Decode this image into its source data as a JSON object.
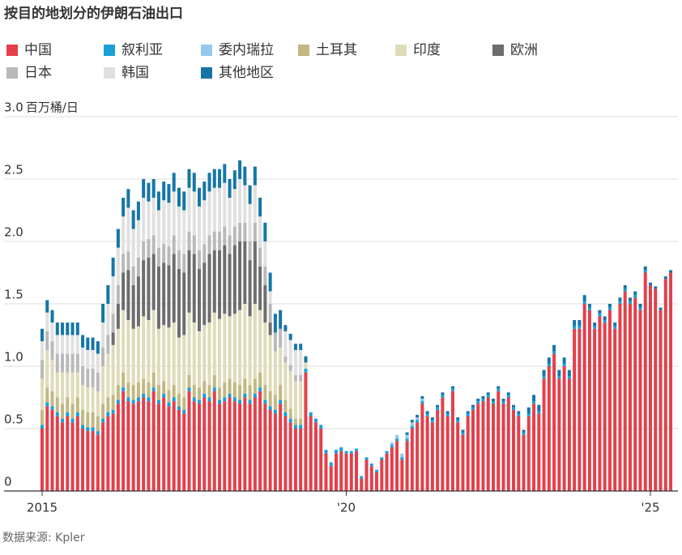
{
  "chart_data": {
    "type": "stacked-bar",
    "title": "按目的地划分的伊朗石油出口",
    "y_unit": "百万桶/日",
    "source": "数据来源: Kpler",
    "ylim": [
      0,
      3
    ],
    "yticks": [
      0,
      0.5,
      {
        "value": 1,
        "label": "1.0"
      },
      1.5,
      {
        "value": 2,
        "label": "2.0"
      },
      2.5,
      {
        "value": 3,
        "label": "3.0"
      }
    ],
    "grid": true,
    "categories": [
      "2015",
      null,
      null,
      null,
      null,
      null,
      null,
      null,
      null,
      null,
      null,
      null,
      null,
      null,
      null,
      null,
      null,
      null,
      null,
      null,
      null,
      null,
      null,
      null,
      null,
      null,
      null,
      null,
      null,
      null,
      null,
      null,
      null,
      null,
      null,
      null,
      null,
      null,
      null,
      null,
      null,
      null,
      null,
      null,
      null,
      null,
      null,
      null,
      null,
      null,
      null,
      null,
      null,
      null,
      null,
      null,
      null,
      null,
      null,
      null,
      "'20",
      null,
      null,
      null,
      null,
      null,
      null,
      null,
      null,
      null,
      null,
      null,
      null,
      null,
      null,
      null,
      null,
      null,
      null,
      null,
      null,
      null,
      null,
      null,
      null,
      null,
      null,
      null,
      null,
      null,
      null,
      null,
      null,
      null,
      null,
      null,
      null,
      null,
      null,
      null,
      null,
      null,
      null,
      null,
      null,
      null,
      null,
      null,
      null,
      null,
      null,
      null,
      null,
      null,
      null,
      null,
      null,
      null,
      null,
      null,
      "'25",
      null,
      null,
      null,
      null
    ],
    "series": [
      {
        "name": "中国",
        "color": "#e3404b",
        "values": [
          0.5,
          0.68,
          0.65,
          0.6,
          0.55,
          0.6,
          0.55,
          0.6,
          0.5,
          0.48,
          0.48,
          0.45,
          0.55,
          0.6,
          0.62,
          0.7,
          0.8,
          0.72,
          0.7,
          0.72,
          0.75,
          0.72,
          0.8,
          0.7,
          0.75,
          0.68,
          0.72,
          0.65,
          0.62,
          0.8,
          0.72,
          0.7,
          0.75,
          0.72,
          0.8,
          0.7,
          0.72,
          0.75,
          0.72,
          0.7,
          0.75,
          0.7,
          0.75,
          0.8,
          0.7,
          0.65,
          0.62,
          0.7,
          0.6,
          0.55,
          0.5,
          0.5,
          0.95,
          0.6,
          0.55,
          0.5,
          0.3,
          0.2,
          0.3,
          0.32,
          0.3,
          0.3,
          0.32,
          0.1,
          0.25,
          0.2,
          0.15,
          0.25,
          0.3,
          0.35,
          0.4,
          0.25,
          0.4,
          0.5,
          0.55,
          0.7,
          0.6,
          0.55,
          0.65,
          0.75,
          0.6,
          0.8,
          0.55,
          0.45,
          0.6,
          0.65,
          0.7,
          0.72,
          0.75,
          0.7,
          0.8,
          0.7,
          0.75,
          0.65,
          0.6,
          0.45,
          0.6,
          0.7,
          0.62,
          0.9,
          1.0,
          1.1,
          0.9,
          1.0,
          0.9,
          1.3,
          1.3,
          1.5,
          1.45,
          1.3,
          1.4,
          1.35,
          1.45,
          1.3,
          1.5,
          1.6,
          1.5,
          1.55,
          1.45,
          1.75,
          1.65,
          1.62,
          1.45,
          1.7,
          1.75
        ]
      },
      {
        "name": "叙利亚",
        "color": "#1a9fd8",
        "values": [
          0.03,
          0.03,
          0.03,
          0.03,
          0.03,
          0.03,
          0.03,
          0.03,
          0.03,
          0.03,
          0.03,
          0.03,
          0.03,
          0.03,
          0.03,
          0.03,
          0.03,
          0.03,
          0.03,
          0.03,
          0.03,
          0.03,
          0.03,
          0.03,
          0.03,
          0.03,
          0.03,
          0.03,
          0.03,
          0.03,
          0.03,
          0.03,
          0.03,
          0.03,
          0.03,
          0.03,
          0.03,
          0.03,
          0.03,
          0.03,
          0.03,
          0.03,
          0.03,
          0.03,
          0.03,
          0.03,
          0.03,
          0.03,
          0.03,
          0.03,
          0.03,
          0.03,
          0.03,
          0.03,
          0.03,
          0.03,
          0.03,
          0.03,
          0.03,
          0.03,
          0.02,
          0.02,
          0.02,
          0.02,
          0.02,
          0.02,
          0.02,
          0.02,
          0.02,
          0.02,
          0.02,
          0.02,
          0.02,
          0.02,
          0.02,
          0.02,
          0.02,
          0.02,
          0.02,
          0.02,
          0.02,
          0.02,
          0.02,
          0.02,
          0.02,
          0.02,
          0.02,
          0.02,
          0.02,
          0.02,
          0.02,
          0.02,
          0.02,
          0.02,
          0.02,
          0.02,
          0.02,
          0.02,
          0.02,
          0.02,
          0.02,
          0.02,
          0.02,
          0.02,
          0.02,
          0.02,
          0.02,
          0.02,
          0.02,
          0.02,
          0.02,
          0.02,
          0.02,
          0.02,
          0.02,
          0.02,
          0.02,
          0.02,
          0.02,
          0.02,
          0,
          0,
          0,
          0,
          0
        ]
      },
      {
        "name": "委内瑞拉",
        "color": "#94c8ec",
        "values": [
          0,
          0,
          0,
          0,
          0,
          0,
          0,
          0,
          0,
          0,
          0,
          0,
          0,
          0,
          0,
          0,
          0,
          0,
          0,
          0,
          0,
          0,
          0,
          0,
          0,
          0,
          0,
          0,
          0,
          0,
          0,
          0,
          0,
          0,
          0,
          0,
          0,
          0,
          0,
          0,
          0,
          0,
          0,
          0,
          0,
          0,
          0,
          0,
          0,
          0,
          0,
          0,
          0,
          0,
          0,
          0,
          0,
          0,
          0,
          0,
          0,
          0,
          0,
          0,
          0,
          0,
          0,
          0,
          0,
          0.02,
          0.03,
          0.03,
          0.03,
          0.03,
          0.02,
          0.02,
          0,
          0,
          0,
          0,
          0,
          0,
          0,
          0,
          0,
          0,
          0,
          0,
          0,
          0,
          0,
          0,
          0,
          0,
          0,
          0,
          0,
          0,
          0,
          0,
          0,
          0,
          0,
          0,
          0,
          0,
          0,
          0,
          0,
          0,
          0,
          0,
          0,
          0,
          0,
          0,
          0,
          0,
          0,
          0,
          0,
          0,
          0,
          0,
          0
        ]
      },
      {
        "name": "土耳其",
        "color": "#c2b882",
        "values": [
          0.12,
          0.12,
          0.12,
          0.12,
          0.12,
          0.12,
          0.12,
          0.12,
          0.12,
          0.12,
          0.12,
          0.12,
          0.12,
          0.12,
          0.12,
          0.12,
          0.12,
          0.12,
          0.12,
          0.12,
          0.12,
          0.12,
          0.12,
          0.12,
          0.1,
          0.1,
          0.1,
          0.1,
          0.1,
          0.1,
          0.1,
          0.1,
          0.1,
          0.1,
          0.1,
          0.1,
          0.12,
          0.12,
          0.12,
          0.12,
          0.12,
          0.12,
          0.12,
          0.12,
          0.12,
          0.12,
          0.12,
          0.12,
          0.1,
          0.08,
          0.05,
          0.05,
          0,
          0,
          0,
          0,
          0,
          0,
          0,
          0,
          0,
          0,
          0,
          0,
          0,
          0,
          0,
          0,
          0,
          0,
          0,
          0,
          0,
          0,
          0,
          0,
          0,
          0,
          0,
          0,
          0,
          0,
          0,
          0,
          0,
          0,
          0,
          0,
          0,
          0,
          0,
          0,
          0,
          0,
          0,
          0,
          0,
          0,
          0,
          0,
          0,
          0,
          0,
          0,
          0,
          0,
          0,
          0,
          0,
          0,
          0,
          0,
          0,
          0,
          0,
          0,
          0,
          0,
          0,
          0,
          0,
          0,
          0,
          0,
          0
        ]
      },
      {
        "name": "印度",
        "color": "#dedbb9",
        "values": [
          0.25,
          0.3,
          0.25,
          0.2,
          0.25,
          0.2,
          0.25,
          0.2,
          0.2,
          0.2,
          0.2,
          0.2,
          0.3,
          0.35,
          0.4,
          0.45,
          0.5,
          0.5,
          0.45,
          0.45,
          0.5,
          0.5,
          0.5,
          0.45,
          0.45,
          0.5,
          0.5,
          0.45,
          0.5,
          0.5,
          0.5,
          0.45,
          0.45,
          0.5,
          0.5,
          0.55,
          0.55,
          0.5,
          0.55,
          0.6,
          0.6,
          0.55,
          0.6,
          0.5,
          0.5,
          0.45,
          0.35,
          0.3,
          0.3,
          0.3,
          0.3,
          0.3,
          0.05,
          0,
          0,
          0,
          0,
          0,
          0,
          0,
          0,
          0,
          0,
          0,
          0,
          0,
          0,
          0,
          0,
          0,
          0,
          0,
          0,
          0,
          0,
          0,
          0,
          0,
          0,
          0,
          0,
          0,
          0,
          0,
          0,
          0,
          0,
          0,
          0,
          0,
          0,
          0,
          0,
          0,
          0,
          0,
          0,
          0,
          0,
          0,
          0,
          0,
          0,
          0,
          0,
          0,
          0,
          0,
          0,
          0,
          0,
          0,
          0,
          0,
          0,
          0,
          0,
          0,
          0,
          0,
          0,
          0,
          0,
          0,
          0
        ]
      },
      {
        "name": "欧洲",
        "color": "#6d6d6d",
        "values": [
          0,
          0,
          0,
          0,
          0,
          0,
          0,
          0,
          0,
          0,
          0,
          0,
          0,
          0,
          0.1,
          0.2,
          0.3,
          0.4,
          0.35,
          0.4,
          0.45,
          0.5,
          0.45,
          0.5,
          0.5,
          0.5,
          0.55,
          0.55,
          0.5,
          0.5,
          0.55,
          0.5,
          0.5,
          0.55,
          0.5,
          0.55,
          0.55,
          0.5,
          0.55,
          0.55,
          0.5,
          0.45,
          0.5,
          0.35,
          0.3,
          0.1,
          0,
          0,
          0,
          0,
          0,
          0,
          0,
          0,
          0,
          0,
          0,
          0,
          0,
          0,
          0,
          0,
          0,
          0,
          0,
          0,
          0,
          0,
          0,
          0,
          0,
          0,
          0,
          0,
          0,
          0,
          0,
          0,
          0,
          0,
          0,
          0,
          0,
          0,
          0,
          0,
          0,
          0,
          0,
          0,
          0,
          0,
          0,
          0,
          0,
          0,
          0,
          0,
          0,
          0,
          0,
          0,
          0,
          0,
          0,
          0,
          0,
          0,
          0,
          0,
          0,
          0,
          0,
          0,
          0,
          0,
          0,
          0,
          0,
          0,
          0,
          0,
          0,
          0,
          0
        ]
      },
      {
        "name": "日本",
        "color": "#b9b9b9",
        "values": [
          0.15,
          0.15,
          0.15,
          0.15,
          0.15,
          0.15,
          0.15,
          0.15,
          0.15,
          0.15,
          0.15,
          0.15,
          0.15,
          0.15,
          0.15,
          0.15,
          0.15,
          0.15,
          0.15,
          0.15,
          0.15,
          0.15,
          0.15,
          0.15,
          0.15,
          0.15,
          0.15,
          0.15,
          0.15,
          0.15,
          0.15,
          0.15,
          0.15,
          0.15,
          0.15,
          0.15,
          0.15,
          0.15,
          0.15,
          0.15,
          0.15,
          0.15,
          0.15,
          0.15,
          0.15,
          0.15,
          0.15,
          0.15,
          0.05,
          0.05,
          0.05,
          0.05,
          0,
          0,
          0,
          0,
          0,
          0,
          0,
          0,
          0,
          0,
          0,
          0,
          0,
          0,
          0,
          0,
          0,
          0,
          0,
          0,
          0,
          0,
          0,
          0,
          0,
          0,
          0,
          0,
          0,
          0,
          0,
          0,
          0,
          0,
          0,
          0,
          0,
          0,
          0,
          0,
          0,
          0,
          0,
          0,
          0,
          0,
          0,
          0,
          0,
          0,
          0,
          0,
          0,
          0,
          0,
          0,
          0,
          0,
          0,
          0,
          0,
          0,
          0,
          0,
          0,
          0,
          0,
          0,
          0,
          0,
          0,
          0,
          0
        ]
      },
      {
        "name": "韩国",
        "color": "#e0e0e0",
        "values": [
          0.15,
          0.15,
          0.15,
          0.15,
          0.15,
          0.15,
          0.15,
          0.15,
          0.15,
          0.15,
          0.15,
          0.15,
          0.2,
          0.25,
          0.3,
          0.3,
          0.3,
          0.35,
          0.3,
          0.3,
          0.35,
          0.3,
          0.3,
          0.3,
          0.35,
          0.35,
          0.35,
          0.35,
          0.35,
          0.35,
          0.35,
          0.35,
          0.35,
          0.35,
          0.35,
          0.35,
          0.35,
          0.3,
          0.3,
          0.35,
          0.3,
          0.3,
          0.3,
          0.25,
          0.2,
          0.1,
          0,
          0,
          0.2,
          0.2,
          0.2,
          0.2,
          0,
          0,
          0,
          0,
          0,
          0,
          0,
          0,
          0,
          0,
          0,
          0,
          0,
          0,
          0,
          0,
          0,
          0,
          0,
          0,
          0,
          0,
          0,
          0,
          0,
          0,
          0,
          0,
          0,
          0,
          0,
          0,
          0,
          0,
          0,
          0,
          0,
          0,
          0,
          0,
          0,
          0,
          0,
          0,
          0,
          0,
          0,
          0,
          0,
          0,
          0,
          0,
          0,
          0,
          0,
          0,
          0,
          0,
          0,
          0,
          0,
          0,
          0,
          0,
          0,
          0,
          0,
          0,
          0,
          0,
          0,
          0,
          0
        ]
      },
      {
        "name": "其他地区",
        "color": "#1576a6",
        "values": [
          0.1,
          0.1,
          0.1,
          0.1,
          0.1,
          0.1,
          0.1,
          0.1,
          0.1,
          0.1,
          0.1,
          0.1,
          0.15,
          0.15,
          0.15,
          0.15,
          0.15,
          0.15,
          0.15,
          0.15,
          0.15,
          0.15,
          0.15,
          0.15,
          0.15,
          0.15,
          0.15,
          0.15,
          0.15,
          0.15,
          0.15,
          0.15,
          0.15,
          0.15,
          0.15,
          0.15,
          0.15,
          0.15,
          0.15,
          0.15,
          0.15,
          0.15,
          0.15,
          0.15,
          0.15,
          0.15,
          0.15,
          0.15,
          0.05,
          0.05,
          0.05,
          0.05,
          0.05,
          0,
          0,
          0,
          0,
          0,
          0,
          0,
          0,
          0,
          0,
          0,
          0,
          0,
          0,
          0,
          0,
          0,
          0,
          0,
          0.02,
          0.02,
          0.02,
          0.02,
          0.02,
          0.02,
          0.02,
          0.02,
          0.02,
          0.02,
          0.02,
          0.02,
          0.02,
          0.02,
          0.02,
          0.02,
          0.02,
          0.02,
          0.02,
          0.02,
          0.02,
          0.02,
          0.02,
          0.02,
          0.05,
          0.05,
          0.05,
          0.05,
          0.05,
          0.05,
          0.05,
          0.05,
          0.05,
          0.05,
          0.05,
          0.05,
          0.03,
          0.03,
          0.03,
          0.03,
          0.03,
          0.03,
          0.03,
          0.03,
          0.03,
          0.03,
          0.03,
          0.03,
          0.02,
          0.02,
          0.02,
          0.02,
          0.02
        ]
      }
    ]
  }
}
